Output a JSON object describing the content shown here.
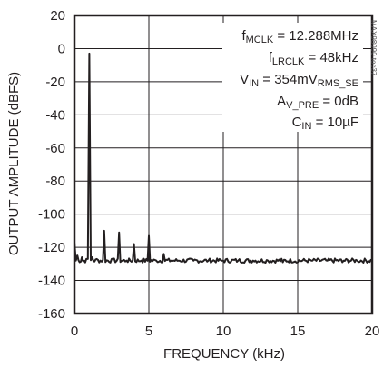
{
  "chart_data": {
    "type": "line",
    "xlabel": "FREQUENCY (kHz)",
    "ylabel": "OUTPUT AMPLITUDE (dBFS)",
    "xlim": [
      0,
      20
    ],
    "ylim": [
      -160,
      20
    ],
    "x_ticks": [
      "0",
      "5",
      "10",
      "15",
      "20"
    ],
    "y_ticks": [
      "20",
      "0",
      "-20",
      "-40",
      "-60",
      "-80",
      "-100",
      "-120",
      "-140",
      "-160"
    ],
    "grid": true,
    "noise_floor_dbfs": -128,
    "series": [
      {
        "x": [
          0.0,
          0.2,
          0.5,
          0.8,
          1.0,
          1.2,
          1.5,
          2.0,
          2.5,
          3.0,
          3.5,
          4.0,
          4.5,
          5.0,
          5.5,
          6.0,
          6.5,
          7.0,
          8.0,
          9.0,
          10.0,
          11.0,
          12.0,
          13.0,
          14.0,
          15.0,
          16.0,
          17.0,
          18.0,
          19.0,
          20.0
        ],
        "y": [
          -117,
          -125,
          -126,
          -127,
          -3,
          -126,
          -127,
          -110,
          -127,
          -111,
          -128,
          -118,
          -128,
          -113,
          -128,
          -124,
          -128,
          -128,
          -128,
          -128,
          -128,
          -128,
          -128,
          -128,
          -129,
          -129,
          -128,
          -128,
          -129,
          -128,
          -128
        ]
      }
    ],
    "annotations": {
      "line1": {
        "main": "f",
        "sub": "MCLK",
        "rest": " = 12.288MHz"
      },
      "line2": {
        "main": "f",
        "sub": "LRCLK",
        "rest": " = 48kHz"
      },
      "line3": {
        "main": "V",
        "sub": "IN",
        "rest": " = 354mV",
        "sub2": "RMS_SE"
      },
      "line4": {
        "main": "A",
        "sub": "V_PRE",
        "rest": " = 0dB"
      },
      "line5": {
        "main": "C",
        "sub": "IN",
        "rest": " = 10µF"
      }
    },
    "figure_id": "MAX98090 toc37",
    "line_color": "#231f20",
    "grid_color": "#231f20"
  }
}
